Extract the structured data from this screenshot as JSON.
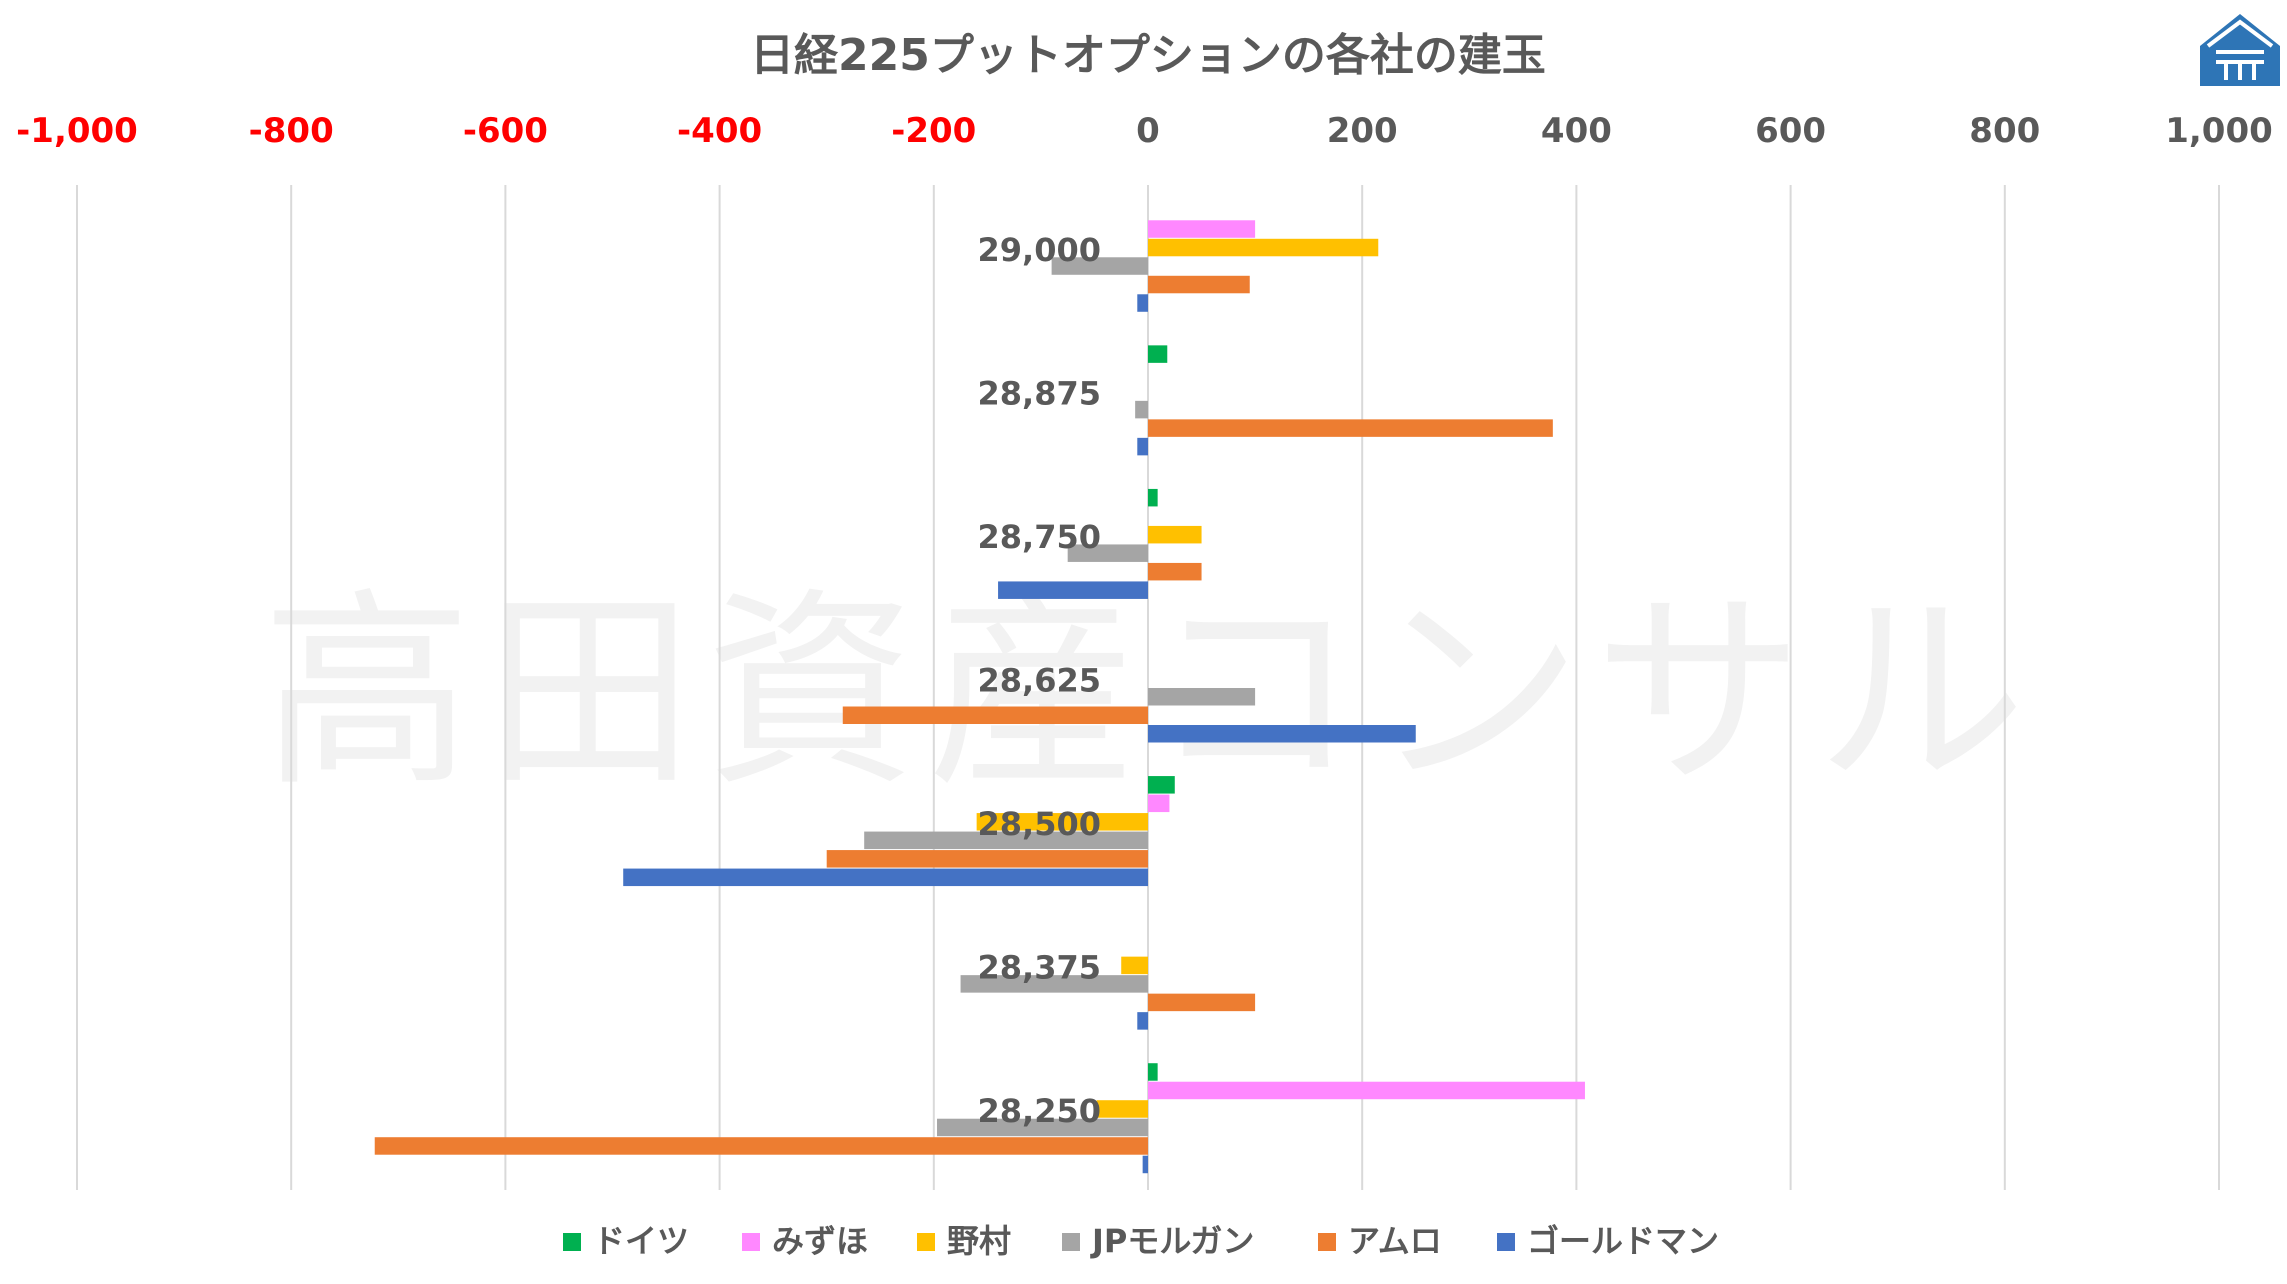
{
  "chart_data": {
    "type": "bar",
    "orientation": "horizontal",
    "title": "日経225プットオプションの各社の建玉",
    "watermark": "高田資産コンサル",
    "logo": "blue-house-logo",
    "xlim": [
      -1000,
      1000
    ],
    "xticks": [
      -1000,
      -800,
      -600,
      -400,
      -200,
      0,
      200,
      400,
      600,
      800,
      1000
    ],
    "xtick_labels": [
      "-1,000",
      "-800",
      "-600",
      "-400",
      "-200",
      "0",
      "200",
      "400",
      "600",
      "800",
      "1,000"
    ],
    "negative_tick_color": "#ff0000",
    "positive_tick_color": "#595959",
    "grid": "vertical",
    "legend_position": "bottom",
    "categories": [
      "29,000",
      "28,875",
      "28,750",
      "28,625",
      "28,500",
      "28,375",
      "28,250"
    ],
    "series": [
      {
        "name": "ドイツ",
        "color": "#00b050",
        "values": [
          0,
          18,
          9,
          0,
          25,
          0,
          9
        ]
      },
      {
        "name": "みずほ",
        "color": "#ff88ff",
        "values": [
          100,
          0,
          0,
          0,
          20,
          0,
          408
        ]
      },
      {
        "name": "野村",
        "color": "#ffc000",
        "values": [
          215,
          0,
          50,
          0,
          -160,
          -25,
          -48
        ]
      },
      {
        "name": "JPモルガン",
        "color": "#a5a5a5",
        "values": [
          -90,
          -12,
          -75,
          100,
          -265,
          -175,
          -197
        ]
      },
      {
        "name": "アムロ",
        "color": "#ed7d31",
        "values": [
          95,
          378,
          50,
          -285,
          -300,
          100,
          -722
        ]
      },
      {
        "name": "ゴールドマン",
        "color": "#4472c4",
        "values": [
          -10,
          -10,
          -140,
          250,
          -490,
          -10,
          -5
        ]
      }
    ]
  }
}
